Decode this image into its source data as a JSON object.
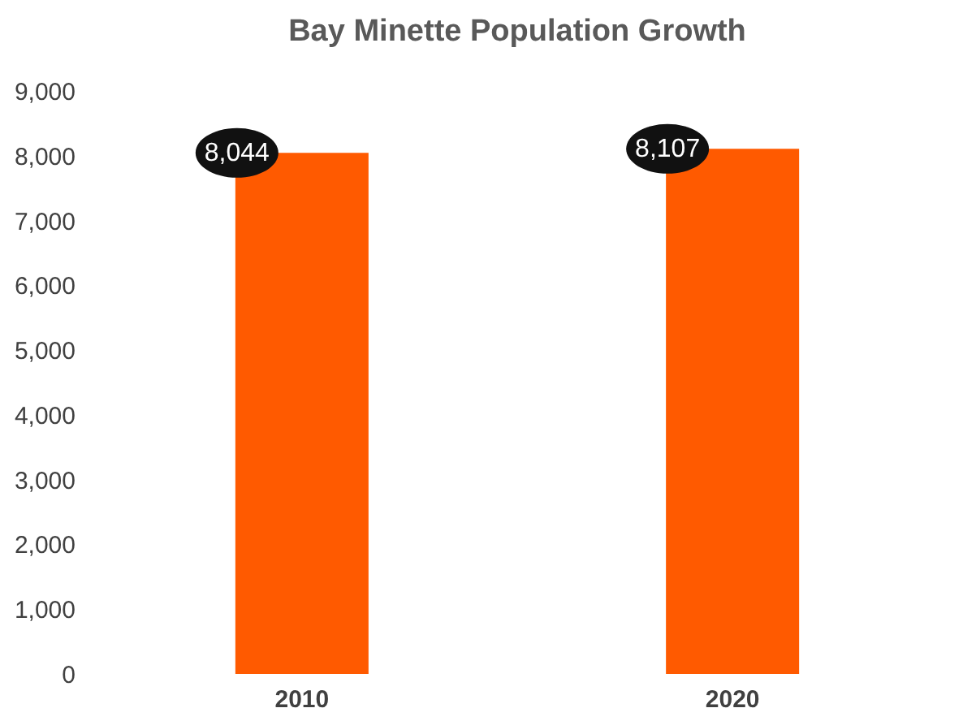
{
  "chart_data": {
    "type": "bar",
    "title": "Bay Minette Population Growth",
    "categories": [
      "2010",
      "2020"
    ],
    "values": [
      8044,
      8107
    ],
    "value_labels": [
      "8,044",
      "8,107"
    ],
    "color": "#ff5a00",
    "ylim": [
      0,
      9000
    ],
    "yticks": [
      {
        "value": 0,
        "label": "0"
      },
      {
        "value": 1000,
        "label": "1,000"
      },
      {
        "value": 2000,
        "label": "2,000"
      },
      {
        "value": 3000,
        "label": "3,000"
      },
      {
        "value": 4000,
        "label": "4,000"
      },
      {
        "value": 5000,
        "label": "5,000"
      },
      {
        "value": 6000,
        "label": "6,000"
      },
      {
        "value": 7000,
        "label": "7,000"
      },
      {
        "value": 8000,
        "label": "8,000"
      },
      {
        "value": 9000,
        "label": "9,000"
      }
    ],
    "grid": false
  }
}
